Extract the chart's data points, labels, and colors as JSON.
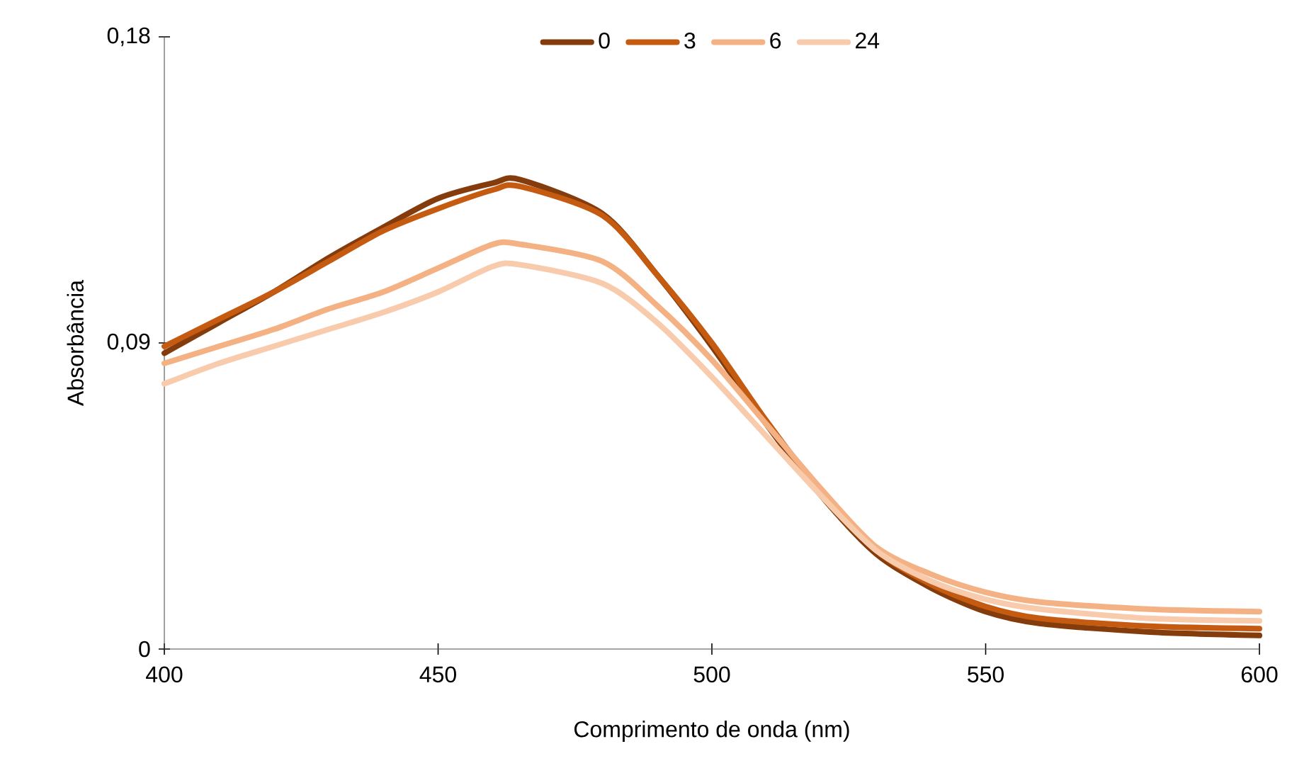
{
  "chart_data": {
    "type": "line",
    "xlabel": "Comprimento de onda (nm)",
    "ylabel": "Absorbância",
    "x": [
      400,
      410,
      420,
      430,
      440,
      450,
      460,
      465,
      480,
      490,
      500,
      510,
      520,
      530,
      540,
      550,
      560,
      580,
      600
    ],
    "series": [
      {
        "name": "0",
        "color": "#843c0c",
        "values": [
          0.087,
          0.096,
          0.105,
          0.115,
          0.124,
          0.1325,
          0.137,
          0.138,
          0.128,
          0.11,
          0.089,
          0.066,
          0.045,
          0.028,
          0.018,
          0.011,
          0.0075,
          0.005,
          0.004
        ]
      },
      {
        "name": "3",
        "color": "#c55a11",
        "values": [
          0.089,
          0.097,
          0.105,
          0.114,
          0.123,
          0.1295,
          0.135,
          0.136,
          0.1275,
          0.11,
          0.09,
          0.067,
          0.046,
          0.029,
          0.019,
          0.0125,
          0.009,
          0.0067,
          0.006
        ]
      },
      {
        "name": "6",
        "color": "#f4b183",
        "values": [
          0.084,
          0.089,
          0.094,
          0.1,
          0.105,
          0.112,
          0.119,
          0.119,
          0.114,
          0.101,
          0.085,
          0.066,
          0.047,
          0.03,
          0.022,
          0.0167,
          0.0138,
          0.0117,
          0.011
        ]
      },
      {
        "name": "24",
        "color": "#f8cbad",
        "values": [
          0.078,
          0.084,
          0.089,
          0.094,
          0.099,
          0.105,
          0.1125,
          0.113,
          0.1075,
          0.096,
          0.08,
          0.0625,
          0.045,
          0.029,
          0.02,
          0.0146,
          0.0117,
          0.009,
          0.0083
        ]
      }
    ],
    "xlim": [
      400,
      600
    ],
    "xticks": [
      400,
      450,
      500,
      550,
      600
    ],
    "ylim": [
      0,
      0.18
    ],
    "yticks": [
      {
        "value": 0,
        "label": "0"
      },
      {
        "value": 0.09,
        "label": "0,09"
      },
      {
        "value": 0.18,
        "label": "0,18"
      }
    ],
    "legend": "top",
    "marker": "none",
    "line_style": "solid"
  }
}
